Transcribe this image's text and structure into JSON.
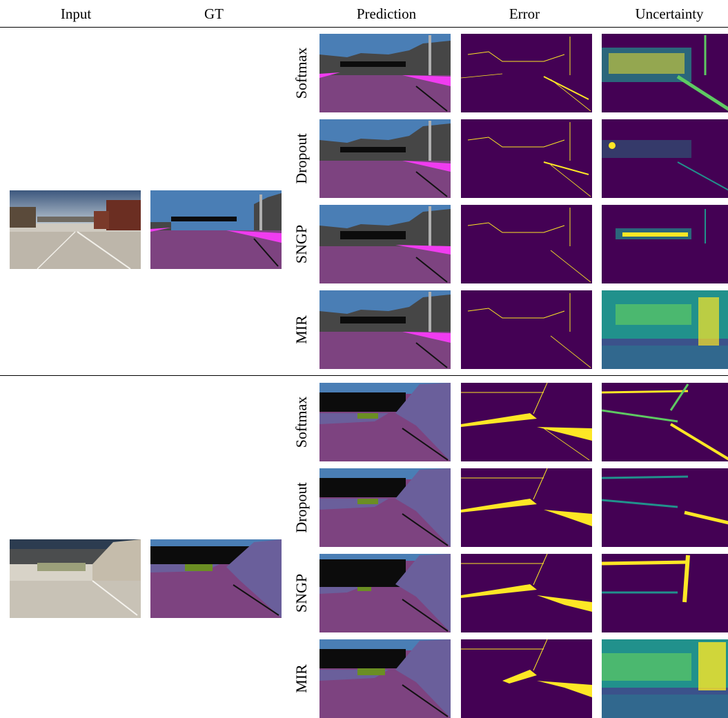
{
  "headers": {
    "input": "Input",
    "gt": "GT",
    "prediction": "Prediction",
    "error": "Error",
    "uncertainty": "Uncertainty"
  },
  "methods": [
    "Softmax",
    "Dropout",
    "SNGP",
    "MIR"
  ],
  "colors": {
    "sky": "#4a7eb5",
    "building": "#464646",
    "road": "#7d4380",
    "sidewalk": "#f03cf0",
    "wall": "#6a5f9b",
    "vegetation": "#6b8e23",
    "dark": "#0c0c0c",
    "error_bg": "#440154",
    "error_fg": "#fde725",
    "unc_mid": "#21918c"
  }
}
